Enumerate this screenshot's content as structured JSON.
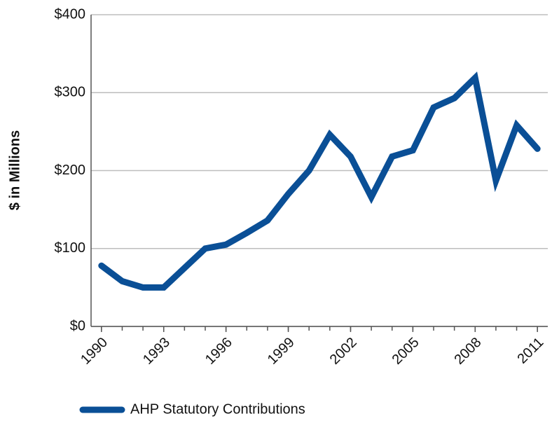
{
  "chart_data": {
    "type": "line",
    "y_label": "$ in Millions",
    "x": [
      1990,
      1991,
      1992,
      1993,
      1994,
      1995,
      1996,
      1997,
      1998,
      1999,
      2000,
      2001,
      2002,
      2003,
      2004,
      2005,
      2006,
      2007,
      2008,
      2009,
      2010,
      2011
    ],
    "series": [
      {
        "name": "AHP Statutory Contributions",
        "color": "#0a4f96",
        "values": [
          78,
          58,
          50,
          50,
          75,
          100,
          105,
          120,
          136,
          170,
          200,
          246,
          218,
          166,
          218,
          226,
          281,
          293,
          319,
          187,
          258,
          228
        ]
      }
    ],
    "xlim": [
      1989.5,
      2011.5
    ],
    "xticks": [
      1990,
      1993,
      1996,
      1999,
      2002,
      2005,
      2008,
      2011
    ],
    "ylim": [
      0,
      400
    ],
    "yticks": [
      {
        "value": 0,
        "label": "$0"
      },
      {
        "value": 100,
        "label": "$100"
      },
      {
        "value": 200,
        "label": "$200"
      },
      {
        "value": 300,
        "label": "$300"
      },
      {
        "value": 400,
        "label": "$400"
      }
    ],
    "grid": true,
    "legend": "bottom"
  }
}
